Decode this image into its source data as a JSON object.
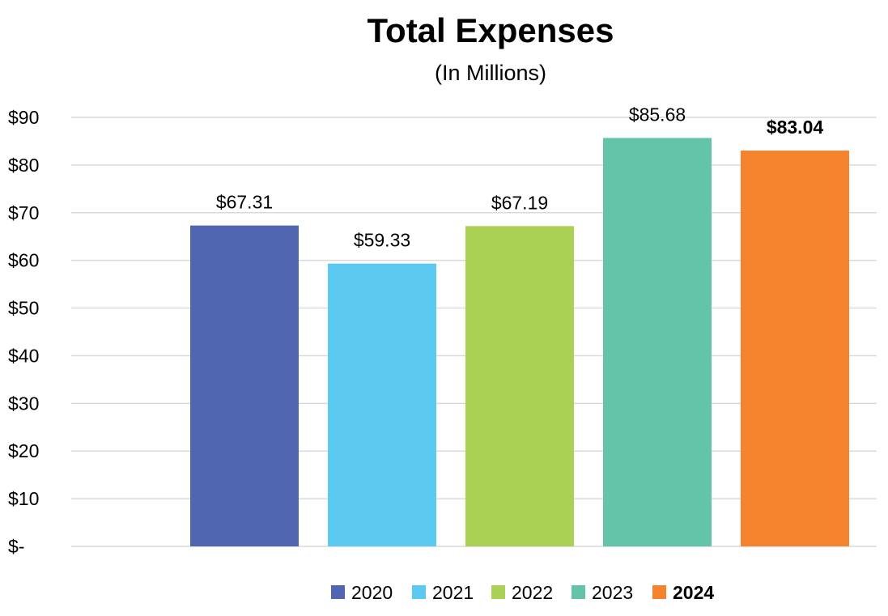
{
  "chart_data": {
    "type": "bar",
    "title": "Total Expenses",
    "subtitle": "(In Millions)",
    "xlabel": "",
    "ylabel": "",
    "ylim": [
      0,
      90
    ],
    "y_tick_labels": [
      "$-",
      "$10",
      "$20",
      "$30",
      "$40",
      "$50",
      "$60",
      "$70",
      "$80",
      "$90"
    ],
    "grid": true,
    "legend_position": "bottom",
    "series": [
      {
        "name": "2020",
        "values": [
          67.31
        ],
        "label": "$67.31",
        "color": "#5166b0",
        "bold": false
      },
      {
        "name": "2021",
        "values": [
          59.33
        ],
        "label": "$59.33",
        "color": "#5bc9f0",
        "bold": false
      },
      {
        "name": "2022",
        "values": [
          67.19
        ],
        "label": "$67.19",
        "color": "#aad154",
        "bold": false
      },
      {
        "name": "2023",
        "values": [
          85.68
        ],
        "label": "$85.68",
        "color": "#63c4aa",
        "bold": false
      },
      {
        "name": "2024",
        "values": [
          83.04
        ],
        "label": "$83.04",
        "color": "#f5822c",
        "bold": true
      }
    ]
  }
}
